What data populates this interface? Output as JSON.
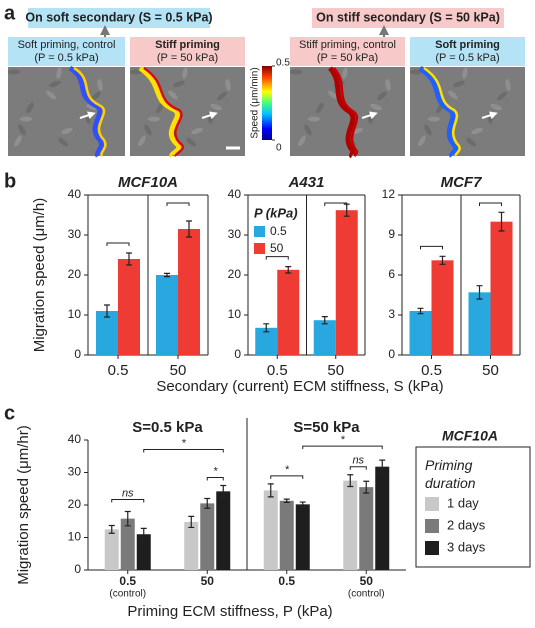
{
  "panel_a": {
    "label": "a",
    "left": {
      "title": "On soft secondary (S = 0.5 kPa)",
      "boxes": [
        [
          "Soft priming, control",
          "(P = 0.5 kPa)"
        ],
        [
          "Stiff priming",
          "(P = 50 kPa)"
        ]
      ]
    },
    "right": {
      "title": "On stiff secondary (S = 50 kPa)",
      "boxes": [
        [
          "Stiff priming, control",
          "(P = 50 kPa)"
        ],
        [
          "Soft priming",
          "(P = 0.5 kPa)"
        ]
      ]
    },
    "colorbar": {
      "label": "Speed (μm/min)",
      "ticks": [
        0,
        0.5
      ]
    }
  },
  "panel_b": {
    "label": "b",
    "y_label": "Migration speed (μm/h)",
    "x_label": "Secondary (current) ECM stiffness, S (kPa)"
  },
  "panel_c": {
    "label": "c"
  },
  "chart_data": [
    {
      "type": "bar",
      "title": "MCF10A",
      "categories": [
        "0.5",
        "50"
      ],
      "category_colors": [
        "#3a3a96",
        "#e0312b"
      ],
      "series": [
        {
          "color": "#29a8e0",
          "values": [
            11,
            20
          ],
          "errors": [
            1.5,
            0.4
          ]
        },
        {
          "color": "#ee3b34",
          "values": [
            24,
            31.5
          ],
          "errors": [
            1.5,
            2
          ]
        }
      ],
      "ylim": [
        0,
        40
      ],
      "yticks": [
        0,
        10,
        20,
        30,
        40
      ]
    },
    {
      "type": "bar",
      "title": "A431",
      "categories": [
        "0.5",
        "50"
      ],
      "category_colors": [
        "#3a3a96",
        "#e0312b"
      ],
      "legend_title": "P (kPa)",
      "series": [
        {
          "name": "0.5",
          "color": "#29a8e0",
          "values": [
            6.8,
            8.7
          ],
          "errors": [
            1,
            0.9
          ]
        },
        {
          "name": "50",
          "color": "#ee3b34",
          "values": [
            21.3,
            36.2
          ],
          "errors": [
            0.8,
            1.5
          ]
        }
      ],
      "ylim": [
        0,
        40
      ],
      "yticks": [
        0,
        10,
        20,
        30,
        40
      ]
    },
    {
      "type": "bar",
      "title": "MCF7",
      "categories": [
        "0.5",
        "50"
      ],
      "category_colors": [
        "#3a3a96",
        "#e0312b"
      ],
      "series": [
        {
          "color": "#29a8e0",
          "values": [
            3.3,
            4.7
          ],
          "errors": [
            0.2,
            0.5
          ]
        },
        {
          "color": "#ee3b34",
          "values": [
            7.1,
            10
          ],
          "errors": [
            0.3,
            0.7
          ]
        }
      ],
      "ylim": [
        0,
        12
      ],
      "yticks": [
        0,
        3,
        6,
        9,
        12
      ]
    },
    {
      "type": "bar",
      "subtitle": "MCF10A",
      "legend_title": "Priming duration",
      "sections": [
        "S=0.5 kPa",
        "S=50 kPa"
      ],
      "section_colors": [
        "#3a3a96",
        "#e0312b"
      ],
      "categories": [
        "0.5",
        "50",
        "0.5",
        "50"
      ],
      "category_colors": [
        "#3a3a96",
        "#e0312b",
        "#3a3a96",
        "#e0312b"
      ],
      "category_notes": [
        "(control)",
        null,
        null,
        "(control)"
      ],
      "series": [
        {
          "name": "1 day",
          "color": "#c8c8c8",
          "values": [
            12.5,
            14.8,
            24.5,
            27.5
          ],
          "errors": [
            1.2,
            1.7,
            2,
            1.8
          ]
        },
        {
          "name": "2 days",
          "color": "#7a7a7a",
          "values": [
            15.8,
            20.5,
            21.3,
            25.5
          ],
          "errors": [
            2.2,
            1.5,
            0.5,
            1.8
          ]
        },
        {
          "name": "3 days",
          "color": "#1e1e1e",
          "values": [
            11,
            24.2,
            20.2,
            31.8
          ],
          "errors": [
            1.8,
            1.8,
            0.7,
            2
          ]
        }
      ],
      "annotations": [
        "ns",
        "*",
        "*",
        "*",
        "ns",
        "*"
      ],
      "ylim": [
        0,
        40
      ],
      "yticks": [
        0,
        10,
        20,
        30,
        40
      ],
      "y_label": "Migration speed (μm/hr)",
      "x_label": "Priming ECM stiffness, P (kPa)"
    }
  ]
}
